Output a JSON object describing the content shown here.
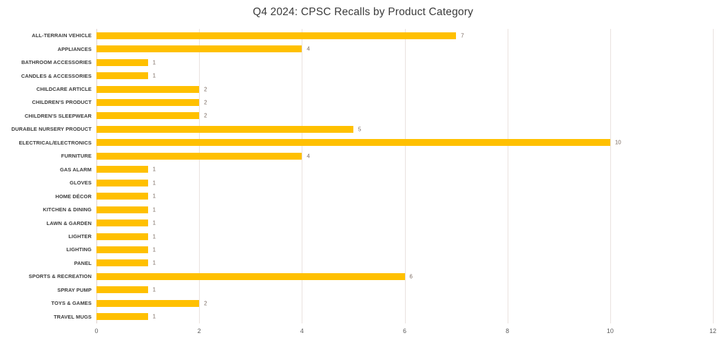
{
  "title": "Q4 2024: CPSC Recalls by Product Category",
  "colors": {
    "background": "#ffffff",
    "bar": "#FFC000",
    "gridline": "#e9e1de",
    "axis_line": "#ddd0cc",
    "category_label": "#3b3b3b",
    "value_label": "#7a6a60",
    "tick_label": "#595959",
    "title": "#3a3a3a"
  },
  "chart_data": {
    "type": "bar",
    "orientation": "horizontal",
    "title": "Q4 2024: CPSC Recalls by Product Category",
    "xlabel": "",
    "ylabel": "",
    "xlim": [
      0,
      12
    ],
    "xticks": [
      0,
      2,
      4,
      6,
      8,
      10,
      12
    ],
    "grid": true,
    "data_labels": true,
    "legend": false,
    "categories": [
      "ALL-TERRAIN VEHICLE",
      "APPLIANCES",
      "BATHROOM ACCESSORIES",
      "CANDLES & ACCESSORIES",
      "CHILDCARE ARTICLE",
      "CHILDREN'S PRODUCT",
      "CHILDREN'S SLEEPWEAR",
      "DURABLE NURSERY PRODUCT",
      "ELECTRICAL/ELECTRONICS",
      "FURNITURE",
      "GAS ALARM",
      "GLOVES",
      "HOME DÉCOR",
      "KITCHEN & DINING",
      "LAWN & GARDEN",
      "LIGHTER",
      "LIGHTING",
      "PANEL",
      "SPORTS & RECREATION",
      "SPRAY PUMP",
      "TOYS & GAMES",
      "TRAVEL MUGS"
    ],
    "values": [
      7,
      4,
      1,
      1,
      2,
      2,
      2,
      5,
      10,
      4,
      1,
      1,
      1,
      1,
      1,
      1,
      1,
      1,
      6,
      1,
      2,
      1
    ]
  }
}
